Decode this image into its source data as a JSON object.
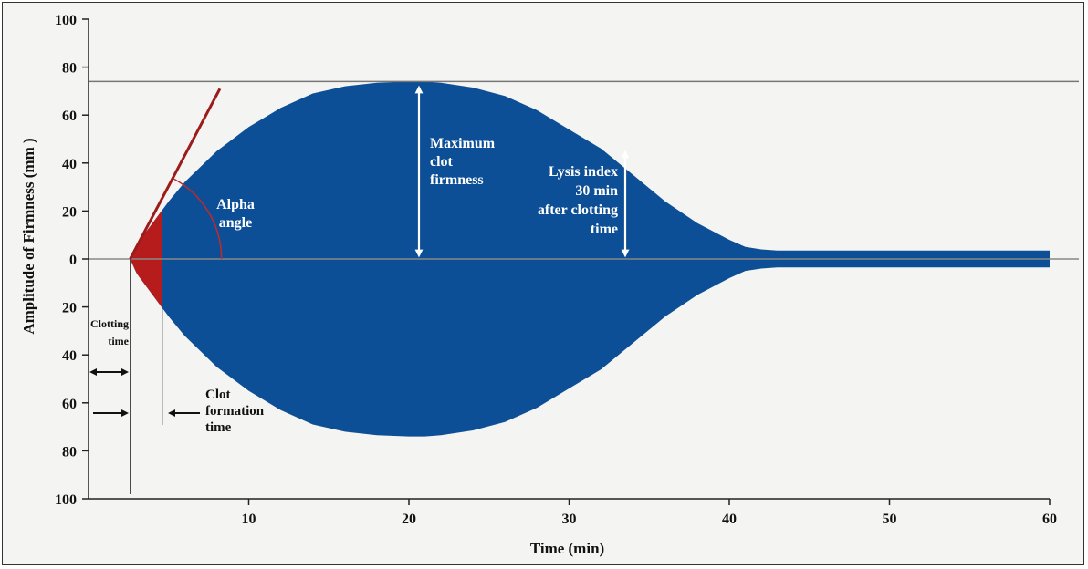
{
  "chart_data": {
    "type": "area",
    "title": "",
    "xlabel": "Time (min)",
    "ylabel": "Amplitude of Firmness (mm )",
    "xlim": [
      0,
      60
    ],
    "ylim": [
      -100,
      100
    ],
    "x_ticks": [
      10,
      20,
      30,
      40,
      50,
      60
    ],
    "y_ticks": [
      {
        "value": 100,
        "label": "100"
      },
      {
        "value": 80,
        "label": "80"
      },
      {
        "value": 60,
        "label": "60"
      },
      {
        "value": 40,
        "label": "40"
      },
      {
        "value": 20,
        "label": "20"
      },
      {
        "value": 0,
        "label": "0"
      },
      {
        "value": -20,
        "label": "20"
      },
      {
        "value": -40,
        "label": "40"
      },
      {
        "value": -60,
        "label": "60"
      },
      {
        "value": -80,
        "label": "80"
      },
      {
        "value": -100,
        "label": "100"
      }
    ],
    "series": [
      {
        "color": "#0d4f96",
        "x": [
          2.6,
          3,
          4,
          5,
          6,
          8,
          10,
          12,
          14,
          16,
          18,
          20,
          21,
          22,
          24,
          26,
          28,
          30,
          32,
          34,
          36,
          38,
          40,
          41,
          42,
          43,
          45,
          50,
          55,
          60
        ],
        "y": [
          0,
          6,
          15,
          24,
          32,
          45,
          55,
          63,
          69,
          72,
          73.5,
          74,
          74,
          73.5,
          71.5,
          68,
          62,
          54,
          46,
          35,
          24,
          15,
          8,
          5,
          4,
          3.5,
          3.5,
          3.5,
          3.5,
          3.5
        ]
      }
    ],
    "highlight_region": {
      "color": "#b71c1c",
      "x_start": 2.6,
      "x_end": 4.6
    },
    "max_firmness_line": 74,
    "clotting_time": 2.6,
    "clot_formation_end": 4.6,
    "tangent_line": {
      "color": "#9c1b1b",
      "x": [
        2.6,
        8.2
      ],
      "y": [
        0,
        71
      ]
    },
    "alpha_arc": {
      "color": "#c62828",
      "radius_min": 5.7
    },
    "annotations": {
      "alpha": [
        "Alpha",
        "angle"
      ],
      "max_clot": [
        "Maximum",
        "clot",
        "firmness"
      ],
      "lysis": [
        "Lysis index",
        "30 min",
        "after clotting",
        "time"
      ],
      "clotting_time": [
        "Clotting",
        "time"
      ],
      "clot_formation": [
        "Clot",
        "formation",
        "time"
      ]
    }
  }
}
